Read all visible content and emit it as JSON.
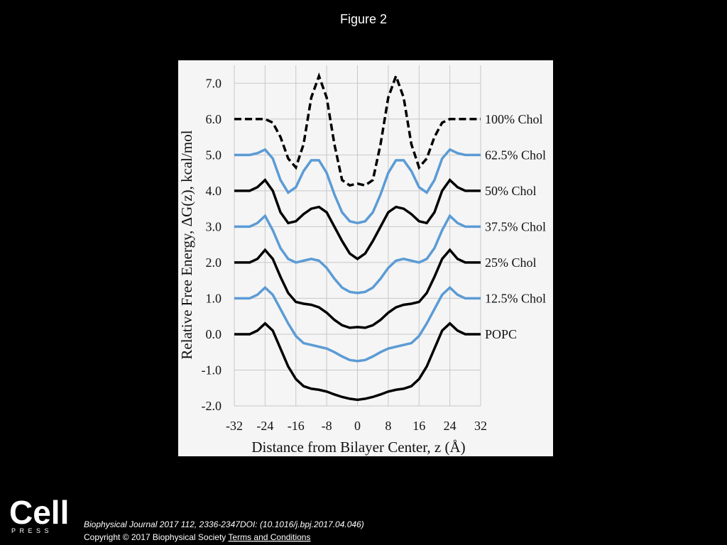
{
  "page_title": "Figure 2",
  "chart_data": {
    "type": "line",
    "ylabel": "Relative Free Energy, ΔG(z), kcal/mol",
    "xlabel": "Distance from Bilayer Center, z (Å)",
    "x": [
      -32,
      -30,
      -28,
      -26,
      -24,
      -22,
      -20,
      -18,
      -16,
      -14,
      -12,
      -10,
      -8,
      -6,
      -4,
      -2,
      0,
      2,
      4,
      6,
      8,
      10,
      12,
      14,
      16,
      18,
      20,
      22,
      24,
      26,
      28,
      30,
      32
    ],
    "series": [
      {
        "name": "100% Chol",
        "color": "#000000",
        "dash": true,
        "values": [
          6,
          6,
          6,
          6,
          6,
          5.9,
          5.5,
          4.9,
          4.65,
          5.3,
          6.6,
          7.2,
          6.6,
          5.3,
          4.3,
          4.15,
          4.2,
          4.15,
          4.3,
          5.3,
          6.6,
          7.2,
          6.6,
          5.3,
          4.65,
          4.9,
          5.5,
          5.9,
          6,
          6,
          6,
          6,
          6
        ]
      },
      {
        "name": "62.5% Chol",
        "color": "#5b9bd5",
        "dash": false,
        "values": [
          5,
          5,
          5,
          5.05,
          5.15,
          4.9,
          4.3,
          3.95,
          4.1,
          4.55,
          4.85,
          4.85,
          4.5,
          3.9,
          3.4,
          3.15,
          3.1,
          3.15,
          3.4,
          3.9,
          4.5,
          4.85,
          4.85,
          4.55,
          4.1,
          3.95,
          4.3,
          4.9,
          5.15,
          5.05,
          5,
          5,
          5
        ]
      },
      {
        "name": "50% Chol",
        "color": "#000000",
        "dash": false,
        "values": [
          4,
          4,
          4,
          4.1,
          4.3,
          4.0,
          3.4,
          3.1,
          3.15,
          3.35,
          3.5,
          3.55,
          3.4,
          3.0,
          2.6,
          2.25,
          2.1,
          2.25,
          2.6,
          3.0,
          3.4,
          3.55,
          3.5,
          3.35,
          3.15,
          3.1,
          3.4,
          4.0,
          4.3,
          4.1,
          4,
          4,
          4
        ]
      },
      {
        "name": "37.5% Chol",
        "color": "#5b9bd5",
        "dash": false,
        "values": [
          3,
          3,
          3,
          3.1,
          3.3,
          2.9,
          2.4,
          2.1,
          2.0,
          2.05,
          2.1,
          2.05,
          1.85,
          1.55,
          1.3,
          1.18,
          1.15,
          1.18,
          1.3,
          1.55,
          1.85,
          2.05,
          2.1,
          2.05,
          2.0,
          2.1,
          2.4,
          2.9,
          3.3,
          3.1,
          3,
          3,
          3
        ]
      },
      {
        "name": "25% Chol",
        "color": "#000000",
        "dash": false,
        "values": [
          2,
          2,
          2,
          2.1,
          2.35,
          2.1,
          1.6,
          1.15,
          0.9,
          0.85,
          0.82,
          0.75,
          0.6,
          0.4,
          0.25,
          0.18,
          0.2,
          0.18,
          0.25,
          0.4,
          0.6,
          0.75,
          0.82,
          0.85,
          0.9,
          1.15,
          1.6,
          2.1,
          2.35,
          2.1,
          2,
          2,
          2
        ]
      },
      {
        "name": "12.5% Chol",
        "color": "#5b9bd5",
        "dash": false,
        "values": [
          1,
          1,
          1,
          1.1,
          1.3,
          1.1,
          0.7,
          0.3,
          -0.05,
          -0.25,
          -0.3,
          -0.35,
          -0.4,
          -0.5,
          -0.62,
          -0.72,
          -0.75,
          -0.72,
          -0.62,
          -0.5,
          -0.4,
          -0.35,
          -0.3,
          -0.25,
          -0.05,
          0.3,
          0.7,
          1.1,
          1.3,
          1.1,
          1,
          1,
          1
        ]
      },
      {
        "name": "POPC",
        "color": "#000000",
        "dash": false,
        "values": [
          0,
          0,
          0,
          0.1,
          0.3,
          0.1,
          -0.4,
          -0.9,
          -1.25,
          -1.45,
          -1.52,
          -1.55,
          -1.6,
          -1.68,
          -1.75,
          -1.8,
          -1.83,
          -1.8,
          -1.75,
          -1.68,
          -1.6,
          -1.55,
          -1.52,
          -1.45,
          -1.25,
          -0.9,
          -0.4,
          0.1,
          0.3,
          0.1,
          0,
          0,
          0
        ]
      }
    ],
    "xlim": [
      -32,
      32
    ],
    "xticks": [
      -32,
      -24,
      -16,
      -8,
      0,
      8,
      16,
      24,
      32
    ],
    "ylim": [
      -2,
      7.5
    ],
    "yticks": [
      {
        "value": -2,
        "label": "-2.0"
      },
      {
        "value": -1,
        "label": "-1.0"
      },
      {
        "value": 0,
        "label": "0.0"
      },
      {
        "value": 1,
        "label": "1.0"
      },
      {
        "value": 2,
        "label": "2.0"
      },
      {
        "value": 3,
        "label": "3.0"
      },
      {
        "value": 4,
        "label": "4.0"
      },
      {
        "value": 5,
        "label": "5.0"
      },
      {
        "value": 6,
        "label": "6.0"
      },
      {
        "value": 7,
        "label": "7.0"
      }
    ],
    "grid": true
  },
  "footer": {
    "logo": "Cell",
    "logo_sub": "PRESS",
    "citation": "Biophysical Journal 2017 112, 2336-2347DOI: (10.1016/j.bpj.2017.04.046)",
    "copyright": "Copyright © 2017 Biophysical Society",
    "link": "Terms and Conditions"
  }
}
